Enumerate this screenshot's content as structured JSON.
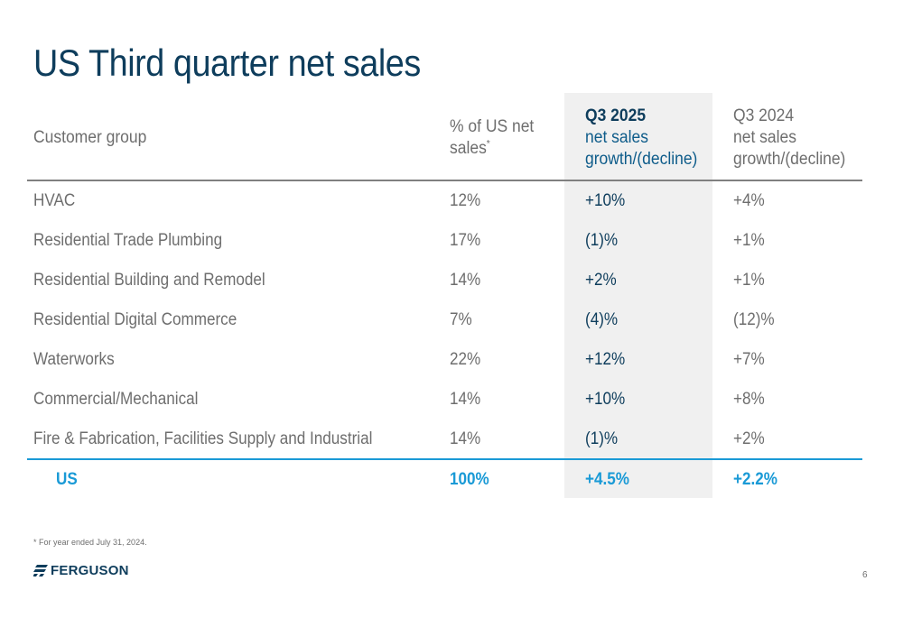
{
  "slide": {
    "title": "US Third quarter net sales",
    "footnote": "* For year ended July 31, 2024.",
    "page_number": "6",
    "logo_text": "FERGUSON"
  },
  "table": {
    "headers": {
      "customer_group": "Customer group",
      "pct_line1": "% of US net",
      "pct_line2": "sales",
      "pct_mark": "*",
      "q2025_line1": "Q3 2025",
      "q2025_line2": "net sales",
      "q2025_line3": "growth/(decline)",
      "q2024_line1": "Q3 2024",
      "q2024_line2": "net sales",
      "q2024_line3": "growth/(decline)"
    },
    "rows": [
      {
        "name": "HVAC",
        "pct": "12%",
        "q2025": "+10%",
        "q2024": "+4%"
      },
      {
        "name": "Residential Trade Plumbing",
        "pct": "17%",
        "q2025": "(1)%",
        "q2024": "+1%"
      },
      {
        "name": "Residential Building and Remodel",
        "pct": "14%",
        "q2025": "+2%",
        "q2024": "+1%"
      },
      {
        "name": "Residential Digital Commerce",
        "pct": "7%",
        "q2025": "(4)%",
        "q2024": "(12)%"
      },
      {
        "name": "Waterworks",
        "pct": "22%",
        "q2025": "+12%",
        "q2024": "+7%"
      },
      {
        "name": "Commercial/Mechanical",
        "pct": "14%",
        "q2025": "+10%",
        "q2024": "+8%"
      },
      {
        "name": "Fire & Fabrication, Facilities Supply and Industrial",
        "pct": "14%",
        "q2025": "(1)%",
        "q2024": "+2%"
      }
    ],
    "total": {
      "name": "US",
      "pct": "100%",
      "q2025": "+4.5%",
      "q2024": "+2.2%"
    }
  },
  "colors": {
    "title": "#0e3d5c",
    "accent_blue": "#1a9ad6",
    "highlight_column": "#f0f0f0",
    "body_text": "#6e6e6e"
  }
}
